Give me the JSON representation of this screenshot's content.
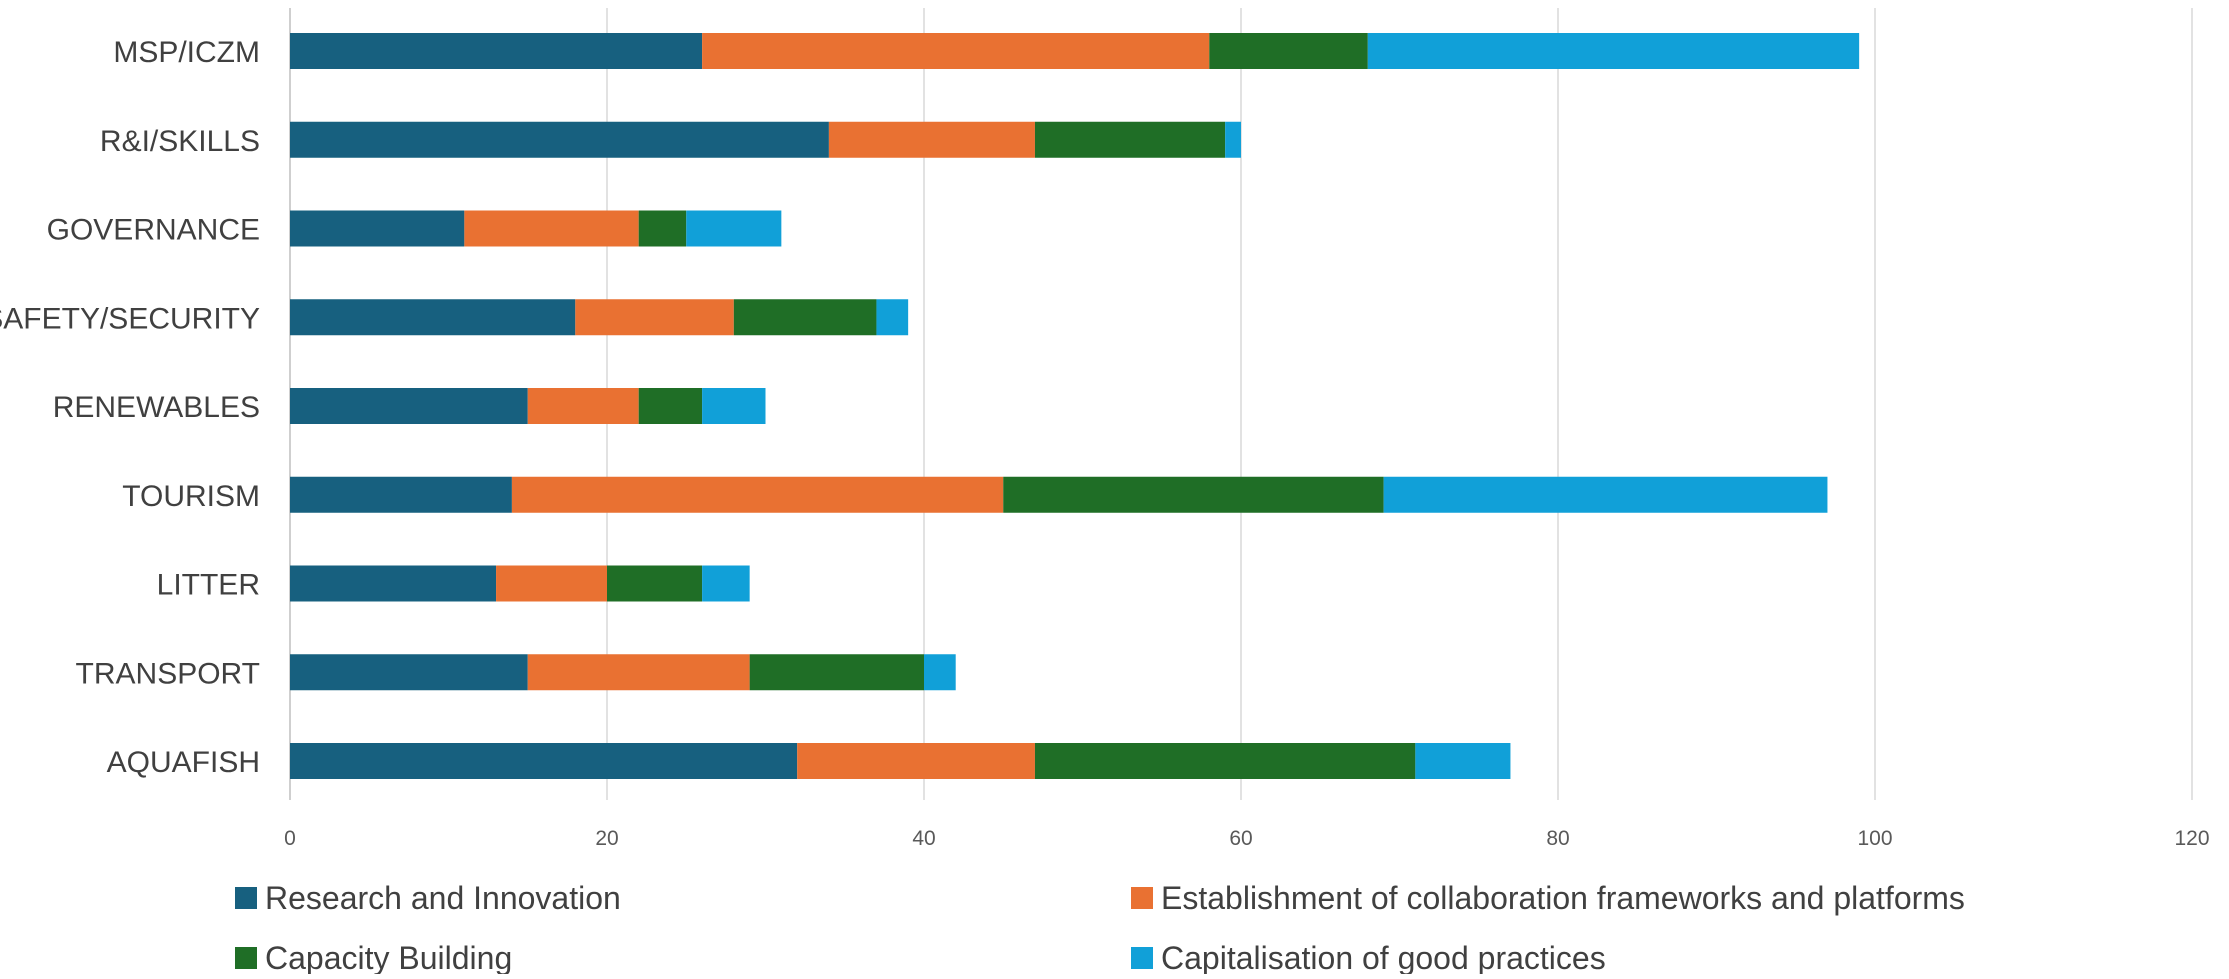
{
  "chart_data": {
    "type": "bar",
    "orientation": "horizontal",
    "stacked": true,
    "categories": [
      "MSP/ICZM",
      "R&I/SKILLS",
      "GOVERNANCE",
      "SAFETY/SECURITY",
      "RENEWABLES",
      "TOURISM",
      "LITTER",
      "TRANSPORT",
      "AQUAFISH"
    ],
    "series": [
      {
        "name": "Research and Innovation",
        "color": "#17607f",
        "values": [
          26,
          34,
          11,
          18,
          15,
          14,
          13,
          15,
          32
        ]
      },
      {
        "name": "Establishment of collaboration frameworks and platforms",
        "color": "#e97132",
        "values": [
          32,
          13,
          11,
          10,
          7,
          31,
          7,
          14,
          15
        ]
      },
      {
        "name": "Capacity Building",
        "color": "#1f6e26",
        "values": [
          10,
          12,
          3,
          9,
          4,
          24,
          6,
          11,
          24
        ]
      },
      {
        "name": "Capitalisation of good practices",
        "color": "#11a0d8",
        "values": [
          31,
          1,
          6,
          2,
          4,
          28,
          3,
          2,
          6
        ]
      }
    ],
    "xlim": [
      0,
      120
    ],
    "xticks": [
      0,
      20,
      40,
      60,
      80,
      100,
      120
    ],
    "title": "",
    "xlabel": "",
    "ylabel": "",
    "grid": "vertical",
    "legend_position": "bottom"
  }
}
